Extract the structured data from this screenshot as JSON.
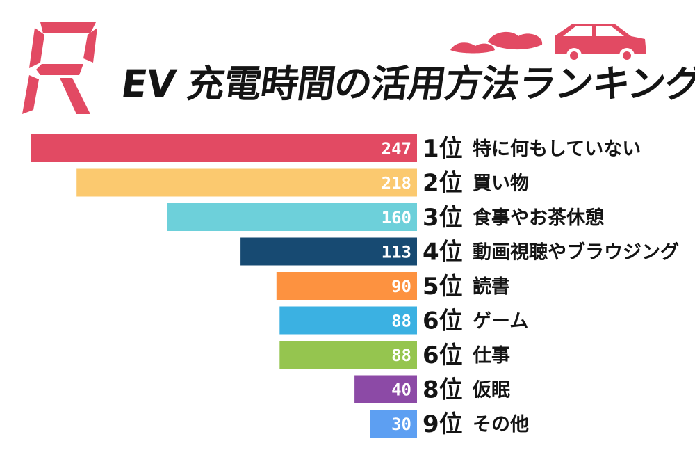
{
  "title": "EV 充電時間の活用方法ランキング",
  "logo_letter": "R",
  "colors": {
    "accent": "#e24a63",
    "text": "#141414",
    "value_label": "#ffffff"
  },
  "chart_data": {
    "type": "bar",
    "orientation": "horizontal",
    "alignment": "bars extend leftward from the label column",
    "legend": "none",
    "grid": false,
    "xlim": [
      0,
      247
    ],
    "categories": [
      "特に何もしていない",
      "買い物",
      "食事やお茶休憩",
      "動画視聴やブラウジング",
      "読書",
      "ゲーム",
      "仕事",
      "仮眠",
      "その他"
    ],
    "ranks": [
      "1位",
      "2位",
      "3位",
      "4位",
      "5位",
      "6位",
      "6位",
      "8位",
      "9位"
    ],
    "values": [
      247,
      218,
      160,
      113,
      90,
      88,
      88,
      40,
      30
    ],
    "bar_colors": [
      "#e24a63",
      "#fbc96f",
      "#6dd0da",
      "#174a72",
      "#fd9240",
      "#3bb1e2",
      "#95c54f",
      "#8c4aa6",
      "#5d9ff2"
    ]
  }
}
